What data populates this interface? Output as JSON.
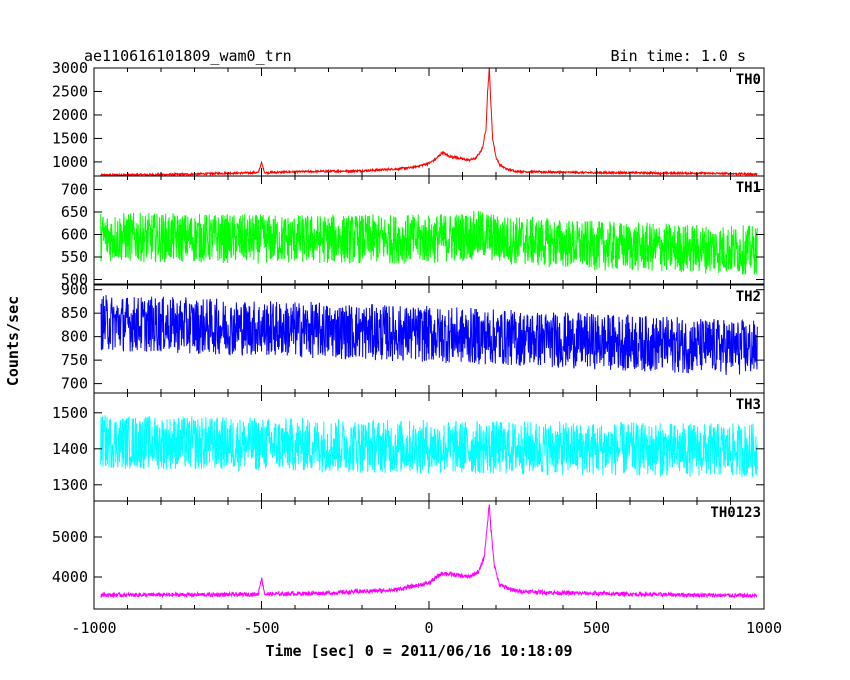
{
  "header": {
    "title": "ae110616101809_wam0_trn",
    "bin_time": "Bin time: 1.0 s"
  },
  "chart_data": {
    "type": "line",
    "title": "ae110616101809_wam0_trn",
    "xlabel": "Time [sec] 0 = 2011/06/16 10:18:09",
    "ylabel": "Counts/sec",
    "xlim": [
      -1000,
      1000
    ],
    "x_ticks": [
      -1000,
      -500,
      0,
      500,
      1000
    ],
    "grid": false,
    "series": [
      {
        "name": "TH0",
        "color": "#ff0000",
        "ylim": [
          700,
          3000
        ],
        "y_ticks": [
          1000,
          1500,
          2000,
          2500,
          3000
        ],
        "x": [
          -980,
          -900,
          -800,
          -700,
          -600,
          -510,
          -500,
          -490,
          -400,
          -300,
          -200,
          -100,
          -50,
          0,
          20,
          40,
          60,
          80,
          100,
          120,
          140,
          150,
          160,
          170,
          175,
          180,
          185,
          190,
          200,
          210,
          230,
          260,
          300,
          400,
          500,
          600,
          700,
          800,
          900,
          980
        ],
        "values": [
          720,
          725,
          730,
          740,
          760,
          770,
          980,
          770,
          790,
          800,
          810,
          850,
          880,
          970,
          1060,
          1200,
          1120,
          1100,
          1060,
          1040,
          1080,
          1180,
          1300,
          1700,
          2500,
          3000,
          2200,
          1500,
          1100,
          950,
          850,
          800,
          790,
          780,
          770,
          770,
          760,
          760,
          750,
          740
        ],
        "noise_amplitude": 20
      },
      {
        "name": "TH1",
        "color": "#00ff00",
        "ylim": [
          490,
          730
        ],
        "y_ticks": [
          500,
          550,
          600,
          650,
          700
        ],
        "x": [
          -980,
          -500,
          0,
          170,
          200,
          500,
          980
        ],
        "values": [
          595,
          590,
          590,
          600,
          590,
          575,
          565
        ],
        "noise_amplitude": 55
      },
      {
        "name": "TH2",
        "color": "#0000ff",
        "ylim": [
          680,
          910
        ],
        "y_ticks": [
          700,
          750,
          800,
          850,
          900
        ],
        "x": [
          -980,
          -500,
          0,
          500,
          980
        ],
        "values": [
          830,
          818,
          805,
          790,
          775
        ],
        "noise_amplitude": 60
      },
      {
        "name": "TH3",
        "color": "#00ffff",
        "ylim": [
          1255,
          1555
        ],
        "y_ticks": [
          1300,
          1400,
          1500
        ],
        "x": [
          -980,
          0,
          980
        ],
        "values": [
          1420,
          1405,
          1395
        ],
        "noise_amplitude": 75
      },
      {
        "name": "TH0123",
        "color": "#ff00ff",
        "ylim": [
          3200,
          5900
        ],
        "y_ticks": [
          4000,
          5000
        ],
        "x": [
          -980,
          -600,
          -510,
          -500,
          -490,
          -300,
          -100,
          0,
          40,
          80,
          120,
          150,
          165,
          175,
          180,
          185,
          195,
          210,
          260,
          400,
          700,
          980
        ],
        "values": [
          3550,
          3560,
          3570,
          3980,
          3570,
          3600,
          3680,
          3850,
          4100,
          4050,
          4000,
          4150,
          4500,
          5400,
          5800,
          5200,
          4300,
          3800,
          3650,
          3600,
          3560,
          3530
        ],
        "noise_amplitude": 50
      }
    ]
  }
}
